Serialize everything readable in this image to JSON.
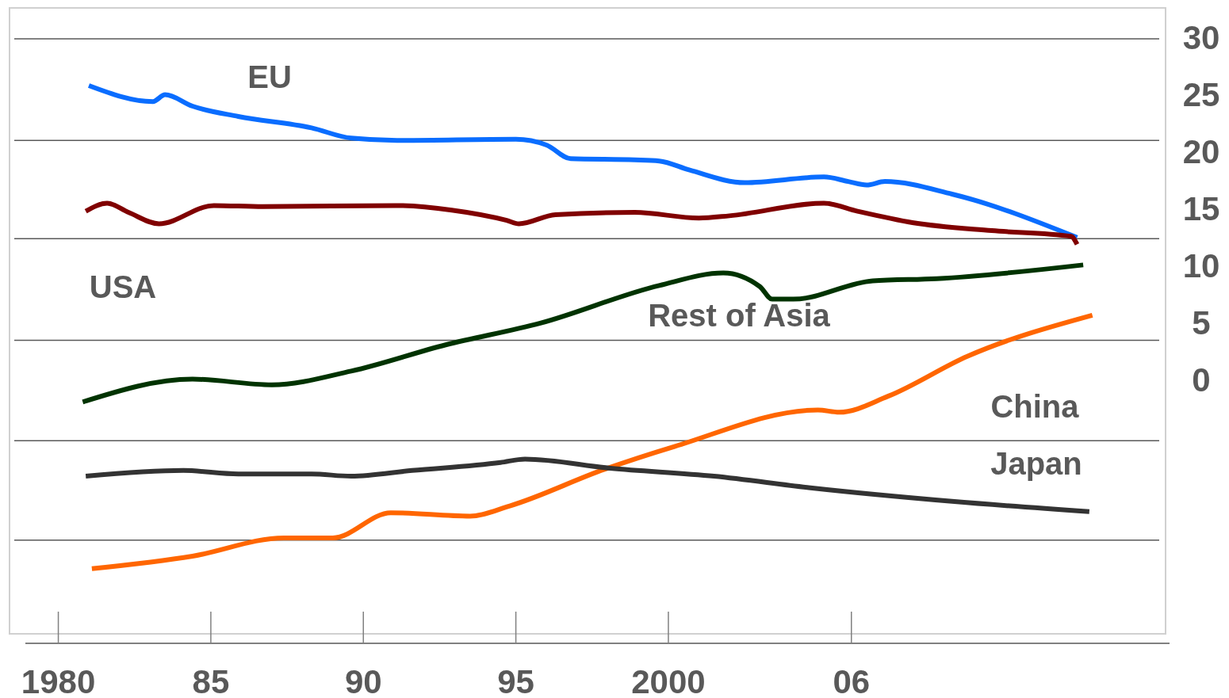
{
  "chart_data": {
    "type": "line",
    "xlim": [
      1978.4,
      2016.3
    ],
    "ylim": [
      -22.2,
      32.6
    ],
    "xticks": [
      1980,
      {
        "value": 1985,
        "label": "85"
      },
      {
        "value": 1990,
        "label": "90"
      },
      {
        "value": 1995,
        "label": "95"
      },
      2000,
      {
        "value": 2006,
        "label": "06"
      }
    ],
    "yticks": [
      0,
      5,
      10,
      15,
      20,
      25,
      30
    ],
    "ref_lines": [
      {
        "axis": "y",
        "value": 29.9,
        "color": "#595959"
      },
      {
        "axis": "y",
        "value": 21.0,
        "color": "#595959"
      },
      {
        "axis": "y",
        "value": 12.4,
        "color": "#595959"
      },
      {
        "axis": "y",
        "value": 3.5,
        "color": "#595959"
      },
      {
        "axis": "y",
        "value": -5.3,
        "color": "#595959"
      },
      {
        "axis": "y",
        "value": -14.0,
        "color": "#595959"
      }
    ],
    "series": [
      {
        "name": "EU",
        "color": "#0a6dff",
        "x": [
          1981.0,
          1983.1,
          1983.5,
          1984.4,
          1985.9,
          1988.3,
          1989.6,
          1991.1,
          1995.0,
          1996.0,
          1996.8,
          1998.9,
          1999.7,
          2000.7,
          2002.5,
          2005.1,
          2005.9,
          2006.5,
          2007.1,
          2009.3,
          2013.4
        ],
        "values": [
          25.8,
          24.4,
          25.0,
          24.0,
          23.1,
          22.1,
          21.2,
          21.0,
          21.1,
          20.6,
          19.4,
          19.3,
          19.2,
          18.4,
          17.3,
          17.8,
          17.4,
          17.1,
          17.4,
          16.3,
          12.5
        ]
      },
      {
        "name": "USA",
        "color": "#800000",
        "x": [
          1980.9,
          1981.6,
          1982.3,
          1983.3,
          1985.1,
          1986.7,
          1991.1,
          1992.9,
          1994.7,
          1995.1,
          1996.3,
          1998.9,
          2001.0,
          2002.0,
          2005.1,
          2006.2,
          2008.0,
          2010.6,
          2013.2,
          2013.4
        ],
        "values": [
          14.8,
          15.5,
          14.7,
          13.7,
          15.3,
          15.2,
          15.3,
          14.9,
          14.0,
          13.7,
          14.5,
          14.7,
          14.2,
          14.4,
          15.5,
          14.8,
          13.8,
          13.1,
          12.6,
          11.9
        ]
      },
      {
        "name": "Rest of Asia",
        "color": "#003300",
        "x": [
          1980.8,
          1984.4,
          1987.0,
          1989.6,
          1992.7,
          1995.8,
          1999.7,
          2001.8,
          2003.0,
          2003.4,
          2004.1,
          2006.7,
          2008.8,
          2013.6
        ],
        "values": [
          -1.9,
          0.1,
          -0.4,
          0.8,
          3.1,
          5.0,
          8.3,
          9.4,
          8.2,
          7.1,
          7.1,
          8.7,
          8.9,
          10.1
        ]
      },
      {
        "name": "China",
        "color": "#ff6600",
        "x": [
          1981.1,
          1984.4,
          1987.4,
          1989.0,
          1990.9,
          1993.5,
          1994.8,
          1997.9,
          2000.2,
          2004.9,
          2005.6,
          2007.2,
          2009.8,
          2013.9
        ],
        "values": [
          -16.5,
          -15.4,
          -13.8,
          -13.8,
          -11.6,
          -11.9,
          -11.0,
          -7.8,
          -5.8,
          -2.6,
          -2.8,
          -1.4,
          2.1,
          5.7
        ]
      },
      {
        "name": "Japan",
        "color": "#333333",
        "x": [
          1980.9,
          1984.1,
          1985.9,
          1988.3,
          1989.6,
          1991.6,
          1994.5,
          1995.3,
          1998.1,
          2001.5,
          2004.6,
          2009.3,
          2013.8
        ],
        "values": [
          -8.4,
          -7.9,
          -8.2,
          -8.2,
          -8.4,
          -7.9,
          -7.2,
          -6.9,
          -7.7,
          -8.4,
          -9.4,
          -10.6,
          -11.5
        ]
      }
    ]
  }
}
